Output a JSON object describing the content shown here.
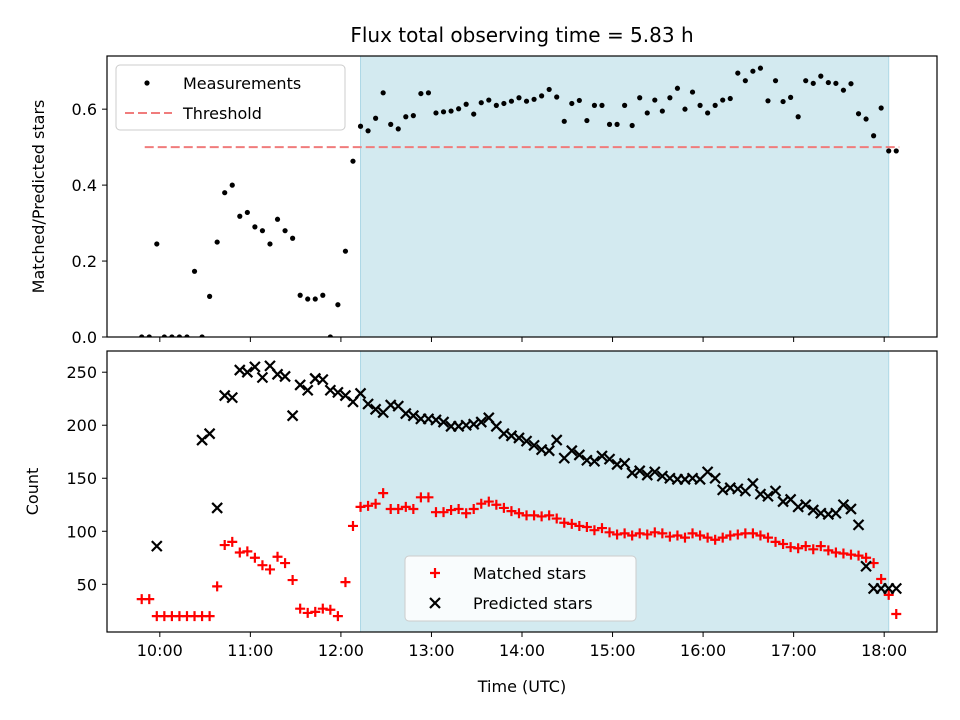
{
  "chart_data": [
    {
      "type": "scatter",
      "title": "Flux total observing time = 5.83 h",
      "xlabel": "",
      "ylabel": "Matched/Predicted stars",
      "xlim": [
        "09:25",
        "18:35"
      ],
      "ylim": [
        0,
        0.74
      ],
      "yticks": [
        0.0,
        0.2,
        0.4,
        0.6
      ],
      "ytick_labels": [
        "0.0",
        "0.2",
        "0.4",
        "0.6"
      ],
      "observing_window": [
        "12:13",
        "18:03"
      ],
      "threshold": {
        "value": 0.5,
        "x_range": [
          "09:50",
          "18:10"
        ]
      },
      "legend": [
        "Measurements",
        "Threshold"
      ],
      "legend_position": "top-left",
      "series": [
        {
          "name": "Measurements",
          "marker": "dot",
          "x": [
            "09:48",
            "09:53",
            "09:58",
            "10:03",
            "10:08",
            "10:13",
            "10:18",
            "10:23",
            "10:28",
            "10:33",
            "10:38",
            "10:43",
            "10:48",
            "10:53",
            "10:58",
            "11:03",
            "11:08",
            "11:13",
            "11:18",
            "11:23",
            "11:28",
            "11:33",
            "11:38",
            "11:43",
            "11:48",
            "11:53",
            "11:58",
            "12:03",
            "12:08",
            "12:13",
            "12:18",
            "12:23",
            "12:28",
            "12:33",
            "12:38",
            "12:43",
            "12:48",
            "12:53",
            "12:58",
            "13:03",
            "13:08",
            "13:13",
            "13:18",
            "13:23",
            "13:28",
            "13:33",
            "13:38",
            "13:43",
            "13:48",
            "13:53",
            "13:58",
            "14:03",
            "14:08",
            "14:13",
            "14:18",
            "14:23",
            "14:28",
            "14:33",
            "14:38",
            "14:43",
            "14:48",
            "14:53",
            "14:58",
            "15:03",
            "15:08",
            "15:13",
            "15:18",
            "15:23",
            "15:28",
            "15:33",
            "15:38",
            "15:43",
            "15:48",
            "15:53",
            "15:58",
            "16:03",
            "16:08",
            "16:13",
            "16:18",
            "16:23",
            "16:28",
            "16:33",
            "16:38",
            "16:43",
            "16:48",
            "16:53",
            "16:58",
            "17:03",
            "17:08",
            "17:13",
            "17:18",
            "17:23",
            "17:28",
            "17:33",
            "17:38",
            "17:43",
            "17:48",
            "17:53",
            "17:58",
            "18:03",
            "18:08"
          ],
          "y": [
            0,
            0,
            0.245,
            0,
            0,
            0,
            0,
            0.173,
            0,
            0.107,
            0.25,
            0.38,
            0.4,
            0.318,
            0.328,
            0.29,
            0.28,
            0.245,
            0.31,
            0.28,
            0.26,
            0.11,
            0.1,
            0.1,
            0.11,
            0,
            0.085,
            0.226,
            0.463,
            0.555,
            0.543,
            0.576,
            0.643,
            0.56,
            0.548,
            0.58,
            0.583,
            0.641,
            0.643,
            0.59,
            0.593,
            0.595,
            0.601,
            0.613,
            0.587,
            0.617,
            0.624,
            0.61,
            0.615,
            0.621,
            0.63,
            0.621,
            0.626,
            0.635,
            0.652,
            0.632,
            0.568,
            0.615,
            0.623,
            0.57,
            0.61,
            0.61,
            0.56,
            0.56,
            0.61,
            0.557,
            0.63,
            0.59,
            0.624,
            0.595,
            0.63,
            0.655,
            0.6,
            0.645,
            0.61,
            0.59,
            0.61,
            0.624,
            0.628,
            0.695,
            0.675,
            0.7,
            0.708,
            0.622,
            0.675,
            0.62,
            0.631,
            0.58,
            0.675,
            0.668,
            0.687,
            0.67,
            0.668,
            0.65,
            0.667,
            0.588,
            0.574,
            0.53,
            0.603,
            0.49,
            0.49
          ]
        }
      ]
    },
    {
      "type": "scatter",
      "title": "",
      "xlabel": "Time (UTC)",
      "ylabel": "Count",
      "xlim": [
        "09:25",
        "18:35"
      ],
      "ylim": [
        5,
        270
      ],
      "xticks": [
        "10:00",
        "11:00",
        "12:00",
        "13:00",
        "14:00",
        "15:00",
        "16:00",
        "17:00",
        "18:00"
      ],
      "yticks": [
        50,
        100,
        150,
        200,
        250
      ],
      "ytick_labels": [
        "50",
        "100",
        "150",
        "200",
        "250"
      ],
      "observing_window": [
        "12:13",
        "18:03"
      ],
      "legend": [
        "Matched stars",
        "Predicted stars"
      ],
      "legend_position": "lower-center",
      "series": [
        {
          "name": "Matched stars",
          "marker": "plus",
          "color": "#ff0000",
          "x": [
            "09:48",
            "09:53",
            "09:58",
            "10:03",
            "10:08",
            "10:13",
            "10:18",
            "10:23",
            "10:28",
            "10:33",
            "10:38",
            "10:43",
            "10:48",
            "10:53",
            "10:58",
            "11:03",
            "11:08",
            "11:13",
            "11:18",
            "11:23",
            "11:28",
            "11:33",
            "11:38",
            "11:43",
            "11:48",
            "11:53",
            "11:58",
            "12:03",
            "12:08",
            "12:13",
            "12:18",
            "12:23",
            "12:28",
            "12:33",
            "12:38",
            "12:43",
            "12:48",
            "12:53",
            "12:58",
            "13:03",
            "13:08",
            "13:13",
            "13:18",
            "13:23",
            "13:28",
            "13:33",
            "13:38",
            "13:43",
            "13:48",
            "13:53",
            "13:58",
            "14:03",
            "14:08",
            "14:13",
            "14:18",
            "14:23",
            "14:28",
            "14:33",
            "14:38",
            "14:43",
            "14:48",
            "14:53",
            "14:58",
            "15:03",
            "15:08",
            "15:13",
            "15:18",
            "15:23",
            "15:28",
            "15:33",
            "15:38",
            "15:43",
            "15:48",
            "15:53",
            "15:58",
            "16:03",
            "16:08",
            "16:13",
            "16:18",
            "16:23",
            "16:28",
            "16:33",
            "16:38",
            "16:43",
            "16:48",
            "16:53",
            "16:58",
            "17:03",
            "17:08",
            "17:13",
            "17:18",
            "17:23",
            "17:28",
            "17:33",
            "17:38",
            "17:43",
            "17:48",
            "17:53",
            "17:58",
            "18:03",
            "18:08"
          ],
          "y": [
            36,
            36,
            20,
            20,
            20,
            20,
            20,
            20,
            20,
            20,
            48,
            87,
            90,
            80,
            81,
            75,
            68,
            64,
            76,
            70,
            54,
            27,
            23,
            24,
            27,
            26,
            20,
            52,
            105,
            123,
            124,
            126,
            136,
            121,
            121,
            123,
            121,
            132,
            132,
            118,
            118,
            120,
            121,
            117,
            121,
            126,
            128,
            125,
            122,
            119,
            117,
            115,
            115,
            114,
            115,
            112,
            108,
            107,
            105,
            104,
            101,
            103,
            99,
            97,
            98,
            96,
            98,
            97,
            99,
            98,
            95,
            96,
            94,
            98,
            96,
            94,
            92,
            94,
            96,
            97,
            98,
            98,
            96,
            94,
            90,
            88,
            85,
            84,
            86,
            83,
            86,
            82,
            80,
            79,
            78,
            77,
            75,
            70,
            55,
            40,
            22
          ]
        },
        {
          "name": "Predicted stars",
          "marker": "x",
          "color": "#000000",
          "x": [
            "09:58",
            "10:38",
            "10:48",
            "10:53",
            "10:58",
            "11:03",
            "11:08",
            "11:13",
            "11:18",
            "11:23",
            "11:28",
            "11:33",
            "11:38",
            "11:43",
            "11:48",
            "11:53",
            "11:58",
            "12:03",
            "12:08",
            "12:13",
            "12:18",
            "12:23",
            "12:28",
            "12:33",
            "12:38",
            "12:43",
            "12:48",
            "12:53",
            "12:58",
            "13:03",
            "13:08",
            "13:13",
            "13:18",
            "13:23",
            "13:28",
            "13:33",
            "13:38",
            "13:43",
            "13:48",
            "13:53",
            "13:58",
            "14:03",
            "14:08",
            "14:13",
            "14:18",
            "14:23",
            "14:28",
            "14:33",
            "14:38",
            "14:43",
            "14:48",
            "14:53",
            "14:58",
            "15:03",
            "15:08",
            "15:13",
            "15:18",
            "15:23",
            "15:28",
            "15:33",
            "15:38",
            "15:43",
            "15:48",
            "15:53",
            "15:58",
            "16:03",
            "16:08",
            "16:13",
            "16:18",
            "16:23",
            "16:28",
            "16:33",
            "16:38",
            "16:43",
            "16:48",
            "16:53",
            "16:58",
            "17:03",
            "17:08",
            "17:13",
            "17:18",
            "17:23",
            "17:28",
            "17:33",
            "17:38",
            "17:43",
            "17:48",
            "17:53",
            "17:58",
            "18:03",
            "18:08",
            "10:28",
            "10:33",
            "10:43",
            "11:43"
          ],
          "y": [
            86,
            122,
            226,
            252,
            250,
            255,
            245,
            256,
            248,
            246,
            209,
            238,
            233,
            244,
            243,
            233,
            231,
            228,
            222,
            230,
            220,
            215,
            212,
            219,
            218,
            211,
            209,
            206,
            206,
            205,
            203,
            199,
            199,
            200,
            201,
            203,
            207,
            199,
            192,
            190,
            188,
            185,
            181,
            177,
            176,
            186,
            169,
            176,
            172,
            167,
            166,
            171,
            168,
            163,
            164,
            155,
            157,
            153,
            156,
            152,
            150,
            149,
            149,
            150,
            149,
            156,
            150,
            139,
            141,
            140,
            138,
            145,
            135,
            133,
            138,
            128,
            130,
            123,
            125,
            120,
            117,
            116,
            117,
            125,
            121,
            106,
            67,
            46,
            46,
            46,
            46,
            186,
            192,
            228,
            244
          ]
        }
      ]
    }
  ]
}
